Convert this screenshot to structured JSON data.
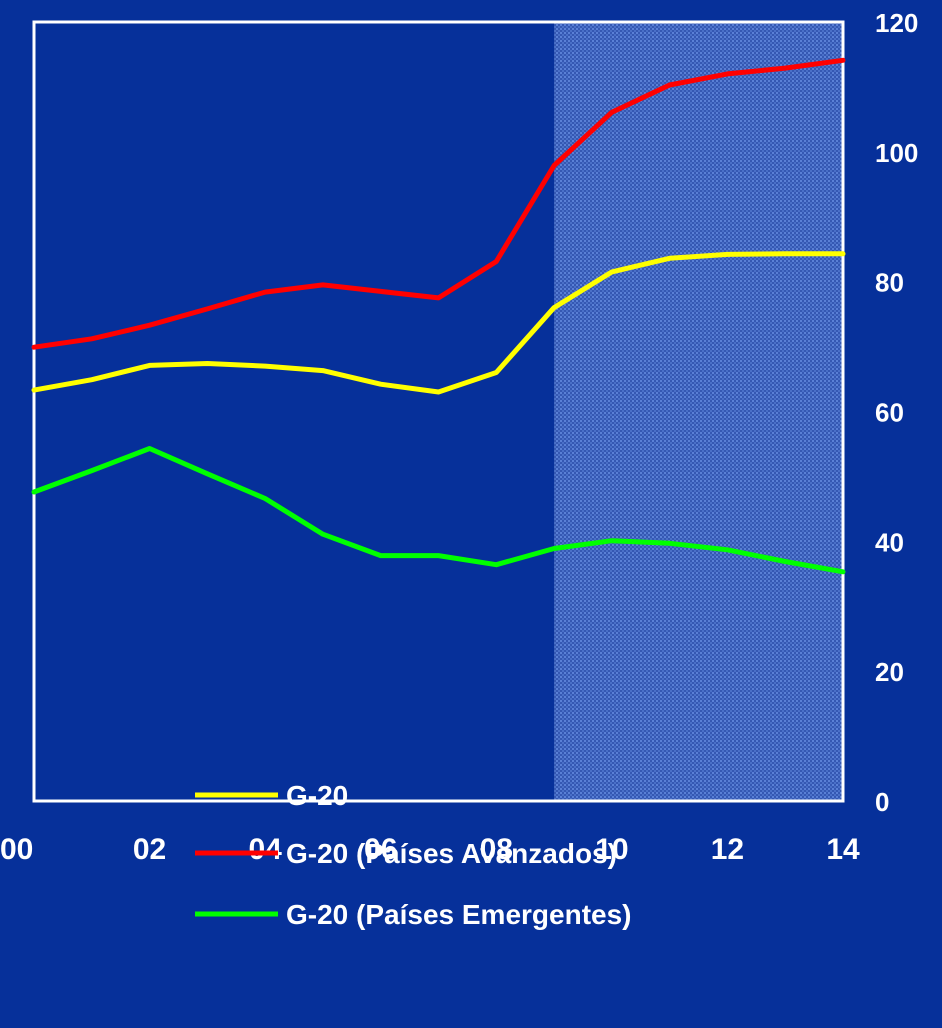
{
  "colors": {
    "background": "#06309a",
    "frame": "#ffffff",
    "forecast_shade": "#3f66c0",
    "text": "#ffffff"
  },
  "chart_data": {
    "type": "line",
    "title": "",
    "xlabel": "",
    "ylabel": "",
    "x": [
      2000,
      2001,
      2002,
      2003,
      2004,
      2005,
      2006,
      2007,
      2008,
      2009,
      2010,
      2011,
      2012,
      2013,
      2014
    ],
    "x_tick_values": [
      2000,
      2002,
      2004,
      2006,
      2008,
      2010,
      2012,
      2014
    ],
    "x_tick_labels": [
      "00",
      "02",
      "04",
      "06",
      "08",
      "10",
      "12",
      "14"
    ],
    "xlim": [
      2000,
      2014
    ],
    "ylim": [
      0,
      120
    ],
    "y_ticks": [
      0,
      20,
      40,
      60,
      80,
      100,
      120
    ],
    "y_axis_side": "right",
    "grid": false,
    "shaded_region": {
      "from": 2009,
      "to": 2014
    },
    "legend_position": "bottom-left",
    "series": [
      {
        "name": "G-20",
        "color": "#ffff00",
        "values": [
          63.3,
          64.9,
          67.1,
          67.4,
          67.0,
          66.3,
          64.2,
          63.0,
          66.0,
          76.0,
          81.5,
          83.6,
          84.2,
          84.3,
          84.3
        ]
      },
      {
        "name": "G-20 (Países Avanzados)",
        "color": "#ff0000",
        "values": [
          69.9,
          71.2,
          73.3,
          75.8,
          78.4,
          79.5,
          78.5,
          77.5,
          83.1,
          97.9,
          106.1,
          110.3,
          112.0,
          112.9,
          114.1
        ]
      },
      {
        "name": "G-20 (Países Emergentes)",
        "color": "#00ff00",
        "values": [
          47.6,
          50.9,
          54.3,
          50.4,
          46.6,
          41.1,
          37.8,
          37.8,
          36.4,
          38.9,
          40.1,
          39.7,
          38.7,
          36.9,
          35.3
        ]
      }
    ]
  }
}
